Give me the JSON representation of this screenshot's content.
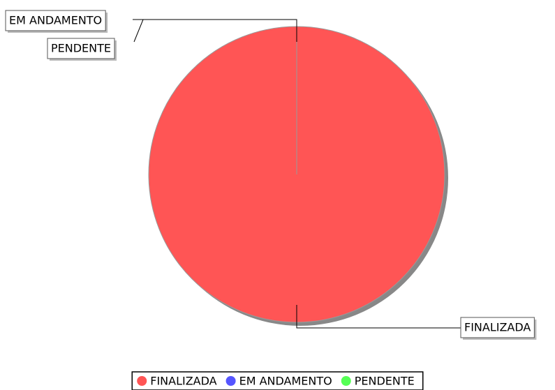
{
  "chart_data": {
    "type": "pie",
    "categories": [
      "FINALIZADA",
      "EM ANDAMENTO",
      "PENDENTE"
    ],
    "values": [
      100,
      0,
      0
    ],
    "colors": [
      "#ff5555",
      "#5555ff",
      "#55ff55"
    ],
    "legend": "bottom"
  }
}
